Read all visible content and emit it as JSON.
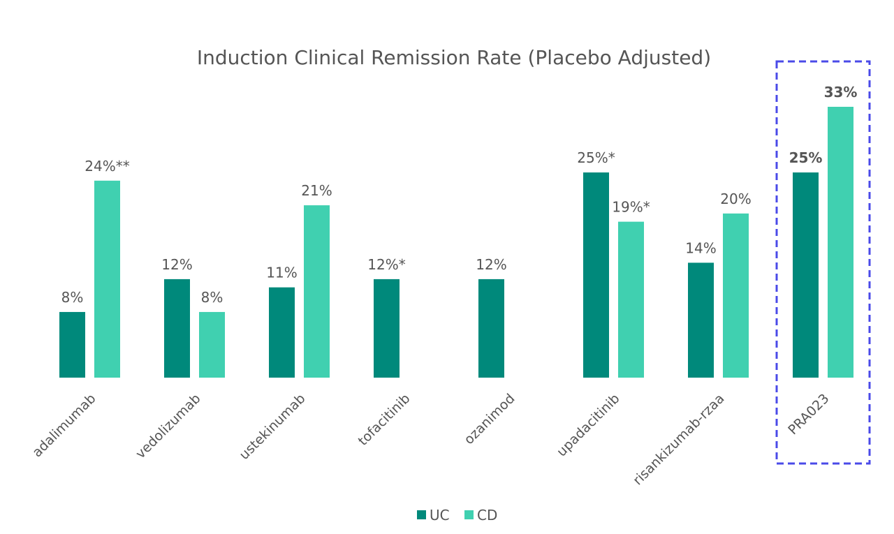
{
  "chart_data": {
    "type": "bar",
    "title": "Induction Clinical Remission Rate (Placebo Adjusted)",
    "categories": [
      "adalimumab",
      "vedolizumab",
      "ustekinumab",
      "tofacitinib",
      "ozanimod",
      "upadacitinib",
      "risankizumab-rzaa",
      "PRA023"
    ],
    "series": [
      {
        "name": "UC",
        "color": "#00897b",
        "values": [
          8,
          12,
          11,
          12,
          12,
          25,
          14,
          25
        ],
        "value_labels": [
          "8%",
          "12%",
          "11%",
          "12%*",
          "12%",
          "25%*",
          "14%",
          "25%"
        ]
      },
      {
        "name": "CD",
        "color": "#40d0b0",
        "values": [
          24,
          8,
          21,
          null,
          null,
          19,
          20,
          33
        ],
        "value_labels": [
          "24%**",
          "8%",
          "21%",
          null,
          null,
          "19%*",
          "20%",
          "33%"
        ]
      }
    ]
  }
}
